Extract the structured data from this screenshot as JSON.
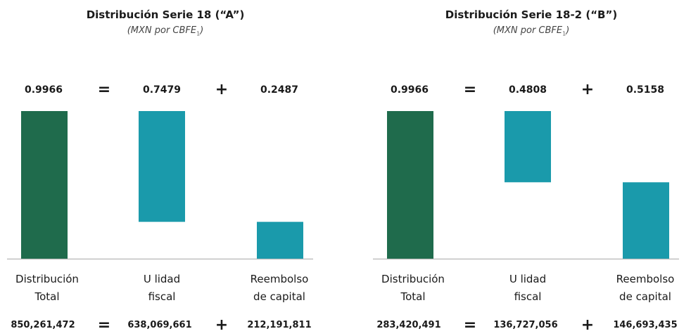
{
  "chart_data": [
    {
      "type": "bar",
      "title": "Distribución Serie 18 (“A”)",
      "subtitle": "(MXN por CBFE",
      "subtitle_footnote": "1",
      "subtitle_close": ")",
      "categories": [
        [
          "Distribución",
          "Total"
        ],
        [
          "U  lidad",
          "fiscal"
        ],
        [
          "Reembolso",
          "de capital"
        ]
      ],
      "values": [
        0.9966,
        0.7479,
        0.2487
      ],
      "value_labels": [
        "0.9966",
        "0.7479",
        "0.2487"
      ],
      "operators_top": [
        "=",
        "+"
      ],
      "totals": [
        "850,261,472",
        "638,069,661",
        "212,191,811"
      ],
      "operators_bottom": [
        "=",
        "+"
      ],
      "colors": [
        "#1f6b4c",
        "#1a9aab",
        "#1a9aab"
      ]
    },
    {
      "type": "bar",
      "title": "Distribución Serie 18-2 (“B”)",
      "subtitle": "(MXN por CBFE",
      "subtitle_footnote": "1",
      "subtitle_close": ")",
      "categories": [
        [
          "Distribución",
          "Total"
        ],
        [
          "U  lidad",
          "fiscal"
        ],
        [
          "Reembolso",
          "de capital"
        ]
      ],
      "values": [
        0.9966,
        0.4808,
        0.5158
      ],
      "value_labels": [
        "0.9966",
        "0.4808",
        "0.5158"
      ],
      "operators_top": [
        "=",
        "+"
      ],
      "totals": [
        "283,420,491",
        "136,727,056",
        "146,693,435"
      ],
      "operators_bottom": [
        "=",
        "+"
      ],
      "colors": [
        "#1f6b4c",
        "#1a9aab",
        "#1a9aab"
      ]
    }
  ]
}
